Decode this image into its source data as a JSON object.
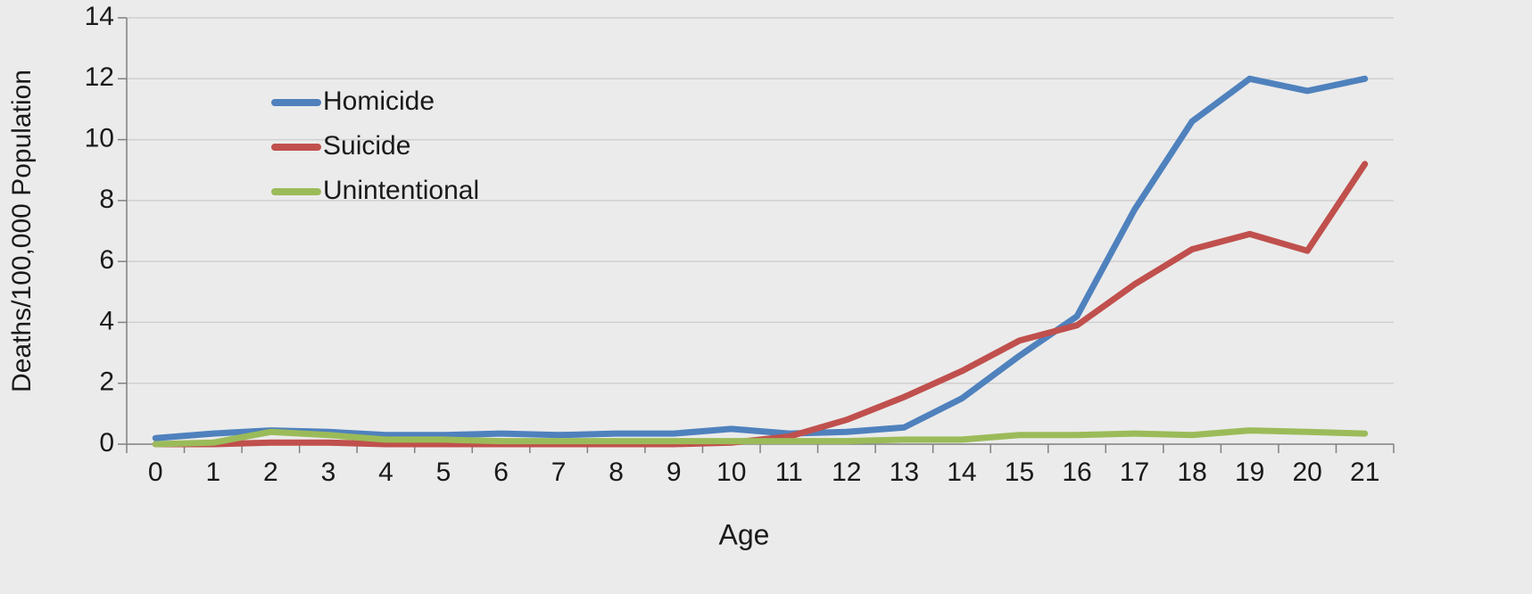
{
  "chart_data": {
    "type": "line",
    "xlabel": "Age",
    "ylabel": "Deaths/100,000 Population",
    "ylim": [
      0,
      14
    ],
    "yticks": [
      0,
      2,
      4,
      6,
      8,
      10,
      12,
      14
    ],
    "grid": "horizontal",
    "legend_position": "top-left",
    "categories": [
      "0",
      "1",
      "2",
      "3",
      "4",
      "5",
      "6",
      "7",
      "8",
      "9",
      "10",
      "11",
      "12",
      "13",
      "14",
      "15",
      "16",
      "17",
      "18",
      "19",
      "20",
      "21"
    ],
    "series": [
      {
        "name": "Homicide",
        "color": "#4f81bd",
        "values": [
          0.2,
          0.35,
          0.45,
          0.4,
          0.3,
          0.3,
          0.35,
          0.3,
          0.35,
          0.35,
          0.5,
          0.35,
          0.4,
          0.55,
          1.5,
          2.9,
          4.2,
          7.7,
          10.6,
          12.0,
          11.6,
          12.0
        ]
      },
      {
        "name": "Suicide",
        "color": "#c0504d",
        "values": [
          0.0,
          0.0,
          0.05,
          0.05,
          0.0,
          0.0,
          0.0,
          0.0,
          0.0,
          0.0,
          0.05,
          0.25,
          0.8,
          1.55,
          2.4,
          3.4,
          3.9,
          5.25,
          6.4,
          6.9,
          6.35,
          9.2
        ]
      },
      {
        "name": "Unintentional",
        "color": "#9bbb59",
        "values": [
          0.0,
          0.05,
          0.4,
          0.3,
          0.15,
          0.15,
          0.1,
          0.1,
          0.1,
          0.1,
          0.1,
          0.1,
          0.1,
          0.15,
          0.15,
          0.3,
          0.3,
          0.35,
          0.3,
          0.45,
          0.4,
          0.35
        ]
      }
    ]
  }
}
